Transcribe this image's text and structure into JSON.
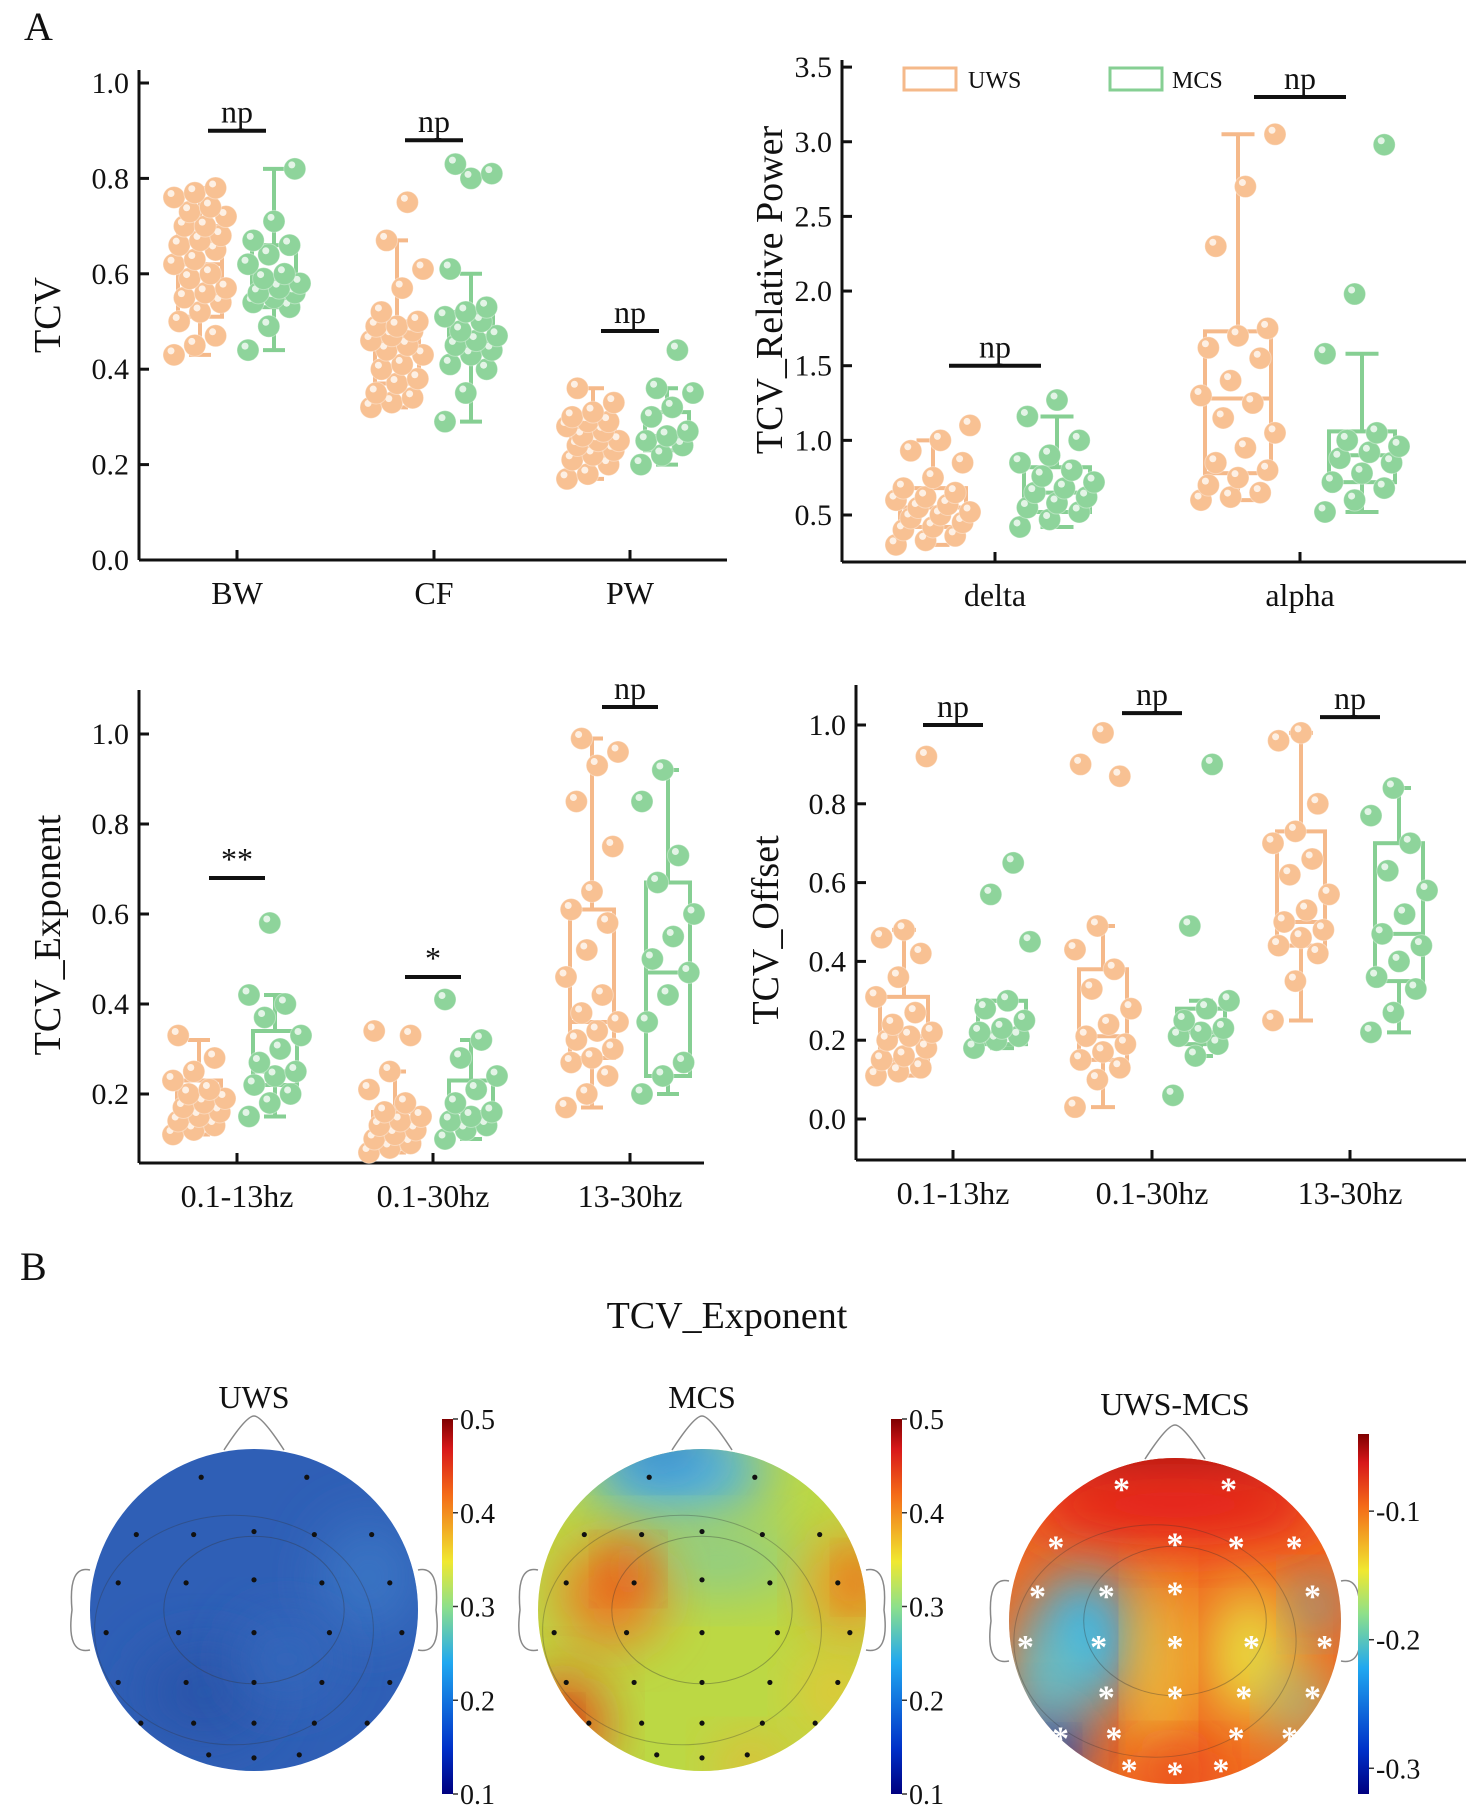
{
  "panel_labels": {
    "a": "A",
    "b": "B"
  },
  "legend": [
    {
      "label": "UWS",
      "color": "#F5B98A"
    },
    {
      "label": "MCS",
      "color": "#86CF93"
    }
  ],
  "colors": {
    "uws_fill": "#F8C193",
    "uws_stroke": "#F5B98A",
    "mcs_fill": "#8ED49B",
    "mcs_stroke": "#86CF93"
  },
  "chart_data": [
    {
      "type": "box",
      "ylabel": "TCV",
      "ylim": [
        0.0,
        1.0
      ],
      "yticks": [
        "0.0",
        "0.2",
        "0.4",
        "0.6",
        "0.8",
        "1.0"
      ],
      "categories": [
        "BW",
        "CF",
        "PW"
      ],
      "significance": [
        {
          "label": "np",
          "y": 0.9
        },
        {
          "label": "np",
          "y": 0.88
        },
        {
          "label": "np",
          "y": 0.48
        }
      ],
      "groups": [
        [
          {
            "series": "UWS",
            "q1": 0.51,
            "median": 0.62,
            "q3": 0.7,
            "whisker_low": 0.43,
            "whisker_high": 0.78,
            "points": [
              0.43,
              0.45,
              0.47,
              0.5,
              0.52,
              0.54,
              0.55,
              0.56,
              0.57,
              0.59,
              0.6,
              0.62,
              0.63,
              0.65,
              0.66,
              0.67,
              0.68,
              0.7,
              0.7,
              0.72,
              0.73,
              0.74,
              0.76,
              0.77,
              0.78
            ]
          },
          {
            "series": "MCS",
            "q1": 0.53,
            "median": 0.58,
            "q3": 0.66,
            "whisker_low": 0.44,
            "whisker_high": 0.82,
            "points": [
              0.44,
              0.49,
              0.53,
              0.54,
              0.55,
              0.56,
              0.56,
              0.57,
              0.58,
              0.59,
              0.6,
              0.62,
              0.64,
              0.66,
              0.67,
              0.71,
              0.82
            ]
          }
        ],
        [
          {
            "series": "UWS",
            "q1": 0.37,
            "median": 0.46,
            "q3": 0.5,
            "whisker_low": 0.32,
            "whisker_high": 0.67,
            "points": [
              0.32,
              0.33,
              0.34,
              0.35,
              0.37,
              0.38,
              0.4,
              0.41,
              0.43,
              0.44,
              0.45,
              0.46,
              0.47,
              0.48,
              0.49,
              0.49,
              0.5,
              0.52,
              0.57,
              0.61,
              0.67,
              0.75
            ]
          },
          {
            "series": "MCS",
            "q1": 0.45,
            "median": 0.47,
            "q3": 0.52,
            "whisker_low": 0.29,
            "whisker_high": 0.6,
            "points": [
              0.29,
              0.35,
              0.4,
              0.41,
              0.43,
              0.44,
              0.45,
              0.46,
              0.47,
              0.48,
              0.5,
              0.51,
              0.52,
              0.53,
              0.61,
              0.8,
              0.81,
              0.83
            ]
          }
        ],
        [
          {
            "series": "UWS",
            "q1": 0.22,
            "median": 0.26,
            "q3": 0.3,
            "whisker_low": 0.17,
            "whisker_high": 0.36,
            "points": [
              0.17,
              0.18,
              0.2,
              0.21,
              0.22,
              0.23,
              0.24,
              0.25,
              0.25,
              0.26,
              0.27,
              0.28,
              0.29,
              0.29,
              0.3,
              0.31,
              0.33,
              0.36
            ]
          },
          {
            "series": "MCS",
            "q1": 0.23,
            "median": 0.26,
            "q3": 0.31,
            "whisker_low": 0.2,
            "whisker_high": 0.36,
            "points": [
              0.2,
              0.22,
              0.24,
              0.25,
              0.26,
              0.27,
              0.3,
              0.32,
              0.35,
              0.36,
              0.44
            ]
          }
        ]
      ]
    },
    {
      "type": "box",
      "ylabel": "TCV_Relative Power",
      "ylim": [
        0.2,
        3.5
      ],
      "yticks": [
        "0.5",
        "1.0",
        "1.5",
        "2.0",
        "2.5",
        "3.0",
        "3.5"
      ],
      "categories": [
        "delta",
        "alpha"
      ],
      "significance": [
        {
          "label": "np",
          "y": 1.5
        },
        {
          "label": "np",
          "y": 3.3
        }
      ],
      "groups": [
        [
          {
            "series": "UWS",
            "q1": 0.42,
            "median": 0.55,
            "q3": 0.68,
            "whisker_low": 0.3,
            "whisker_high": 1.0,
            "points": [
              0.3,
              0.33,
              0.36,
              0.4,
              0.42,
              0.45,
              0.48,
              0.5,
              0.52,
              0.55,
              0.57,
              0.6,
              0.62,
              0.65,
              0.68,
              0.75,
              0.85,
              0.93,
              1.0,
              1.1
            ]
          },
          {
            "series": "MCS",
            "q1": 0.52,
            "median": 0.65,
            "q3": 0.82,
            "whisker_low": 0.42,
            "whisker_high": 1.16,
            "points": [
              0.42,
              0.47,
              0.52,
              0.55,
              0.58,
              0.62,
              0.65,
              0.68,
              0.72,
              0.76,
              0.8,
              0.85,
              0.9,
              1.0,
              1.16,
              1.27
            ]
          }
        ],
        [
          {
            "series": "UWS",
            "q1": 0.78,
            "median": 1.28,
            "q3": 1.73,
            "whisker_low": 0.6,
            "whisker_high": 3.05,
            "points": [
              0.6,
              0.62,
              0.65,
              0.7,
              0.75,
              0.8,
              0.85,
              0.95,
              1.05,
              1.15,
              1.25,
              1.3,
              1.4,
              1.55,
              1.62,
              1.7,
              1.75,
              2.3,
              2.7,
              3.05
            ]
          },
          {
            "series": "MCS",
            "q1": 0.72,
            "median": 0.9,
            "q3": 1.06,
            "whisker_low": 0.52,
            "whisker_high": 1.58,
            "points": [
              0.52,
              0.6,
              0.68,
              0.72,
              0.78,
              0.85,
              0.88,
              0.92,
              0.96,
              1.0,
              1.05,
              1.58,
              1.98,
              2.98
            ]
          }
        ]
      ]
    },
    {
      "type": "box",
      "ylabel": "TCV_Exponent",
      "ylim": [
        0.05,
        1.0
      ],
      "yticks": [
        "0.2",
        "0.4",
        "0.6",
        "0.8",
        "1.0"
      ],
      "categories": [
        "0.1-13hz",
        "0.1-30hz",
        "13-30hz"
      ],
      "significance": [
        {
          "label": "**",
          "y": 0.68
        },
        {
          "label": "*",
          "y": 0.46
        },
        {
          "label": "np",
          "y": 1.06
        }
      ],
      "groups": [
        [
          {
            "series": "UWS",
            "q1": 0.14,
            "median": 0.18,
            "q3": 0.23,
            "whisker_low": 0.11,
            "whisker_high": 0.32,
            "points": [
              0.11,
              0.12,
              0.13,
              0.14,
              0.15,
              0.16,
              0.17,
              0.18,
              0.19,
              0.2,
              0.21,
              0.23,
              0.25,
              0.28,
              0.33
            ]
          },
          {
            "series": "MCS",
            "q1": 0.22,
            "median": 0.25,
            "q3": 0.34,
            "whisker_low": 0.15,
            "whisker_high": 0.42,
            "points": [
              0.15,
              0.18,
              0.2,
              0.22,
              0.24,
              0.25,
              0.27,
              0.3,
              0.33,
              0.37,
              0.4,
              0.42,
              0.58
            ]
          }
        ],
        [
          {
            "series": "UWS",
            "q1": 0.08,
            "median": 0.12,
            "q3": 0.16,
            "whisker_low": 0.07,
            "whisker_high": 0.25,
            "points": [
              0.07,
              0.08,
              0.09,
              0.1,
              0.11,
              0.12,
              0.13,
              0.14,
              0.15,
              0.16,
              0.18,
              0.21,
              0.25,
              0.33,
              0.34
            ]
          },
          {
            "series": "MCS",
            "q1": 0.13,
            "median": 0.16,
            "q3": 0.23,
            "whisker_low": 0.1,
            "whisker_high": 0.32,
            "points": [
              0.1,
              0.12,
              0.13,
              0.14,
              0.15,
              0.16,
              0.18,
              0.21,
              0.24,
              0.28,
              0.32,
              0.41
            ]
          }
        ],
        [
          {
            "series": "UWS",
            "q1": 0.28,
            "median": 0.36,
            "q3": 0.61,
            "whisker_low": 0.17,
            "whisker_high": 0.99,
            "points": [
              0.17,
              0.2,
              0.24,
              0.27,
              0.28,
              0.3,
              0.32,
              0.34,
              0.36,
              0.38,
              0.42,
              0.46,
              0.52,
              0.58,
              0.61,
              0.65,
              0.75,
              0.85,
              0.93,
              0.96,
              0.99
            ]
          },
          {
            "series": "MCS",
            "q1": 0.24,
            "median": 0.47,
            "q3": 0.67,
            "whisker_low": 0.2,
            "whisker_high": 0.92,
            "points": [
              0.2,
              0.24,
              0.27,
              0.36,
              0.42,
              0.47,
              0.5,
              0.55,
              0.6,
              0.67,
              0.73,
              0.85,
              0.92
            ]
          }
        ]
      ]
    },
    {
      "type": "box",
      "ylabel": "TCV_Offset",
      "ylim": [
        -0.1,
        1.0
      ],
      "yticks": [
        "0.0",
        "0.2",
        "0.4",
        "0.6",
        "0.8",
        "1.0"
      ],
      "categories": [
        "0.1-13hz",
        "0.1-30hz",
        "13-30hz"
      ],
      "significance": [
        {
          "label": "np",
          "y": 1.0
        },
        {
          "label": "np",
          "y": 1.03
        },
        {
          "label": "np",
          "y": 1.02
        }
      ],
      "groups": [
        [
          {
            "series": "UWS",
            "q1": 0.15,
            "median": 0.21,
            "q3": 0.31,
            "whisker_low": 0.11,
            "whisker_high": 0.48,
            "points": [
              0.11,
              0.12,
              0.13,
              0.15,
              0.16,
              0.18,
              0.2,
              0.21,
              0.22,
              0.24,
              0.27,
              0.31,
              0.36,
              0.42,
              0.46,
              0.48,
              0.92
            ]
          },
          {
            "series": "MCS",
            "q1": 0.19,
            "median": 0.22,
            "q3": 0.3,
            "whisker_low": 0.18,
            "whisker_high": 0.3,
            "points": [
              0.18,
              0.2,
              0.21,
              0.22,
              0.23,
              0.25,
              0.28,
              0.3,
              0.45,
              0.57,
              0.65
            ]
          }
        ],
        [
          {
            "series": "UWS",
            "q1": 0.15,
            "median": 0.21,
            "q3": 0.38,
            "whisker_low": 0.03,
            "whisker_high": 0.49,
            "points": [
              0.03,
              0.1,
              0.13,
              0.15,
              0.17,
              0.19,
              0.21,
              0.24,
              0.28,
              0.33,
              0.38,
              0.43,
              0.49,
              0.87,
              0.9,
              0.98
            ]
          },
          {
            "series": "MCS",
            "q1": 0.19,
            "median": 0.22,
            "q3": 0.28,
            "whisker_low": 0.16,
            "whisker_high": 0.3,
            "points": [
              0.06,
              0.16,
              0.19,
              0.21,
              0.22,
              0.23,
              0.25,
              0.28,
              0.3,
              0.49,
              0.9
            ]
          }
        ],
        [
          {
            "series": "UWS",
            "q1": 0.44,
            "median": 0.5,
            "q3": 0.73,
            "whisker_low": 0.25,
            "whisker_high": 0.98,
            "points": [
              0.25,
              0.35,
              0.42,
              0.44,
              0.46,
              0.48,
              0.5,
              0.53,
              0.57,
              0.62,
              0.66,
              0.7,
              0.73,
              0.8,
              0.96,
              0.98
            ]
          },
          {
            "series": "MCS",
            "q1": 0.35,
            "median": 0.47,
            "q3": 0.7,
            "whisker_low": 0.22,
            "whisker_high": 0.84,
            "points": [
              0.22,
              0.27,
              0.33,
              0.36,
              0.4,
              0.44,
              0.47,
              0.52,
              0.58,
              0.63,
              0.7,
              0.77,
              0.84
            ]
          }
        ]
      ]
    }
  ],
  "topomaps": {
    "title": "TCV_Exponent",
    "maps": [
      {
        "title": "UWS",
        "colorbar_ticks": [
          "0.5",
          "0.4",
          "0.3",
          "0.2",
          "0.1"
        ],
        "range": [
          0.1,
          0.5
        ]
      },
      {
        "title": "MCS",
        "colorbar_ticks": [
          "0.5",
          "0.4",
          "0.3",
          "0.2",
          "0.1"
        ],
        "range": [
          0.1,
          0.5
        ]
      },
      {
        "title": "UWS-MCS",
        "colorbar_ticks": [
          "-0.1",
          "-0.2",
          "-0.3"
        ],
        "range": [
          -0.32,
          -0.04
        ],
        "significance_marker": "*"
      }
    ]
  }
}
